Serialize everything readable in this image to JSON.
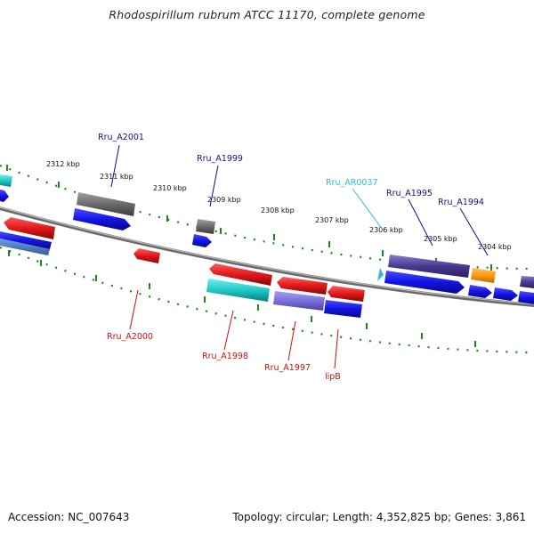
{
  "title": "Rhodospirillum rubrum ATCC 11170, complete genome",
  "footer": {
    "accession": "Accession: NC_007643",
    "summary": "Topology: circular; Length: 4,352,825 bp; Genes: 3,861"
  },
  "colors": {
    "backbone": "#8a8a8a",
    "ticks": "#1a8a1a",
    "forward_cds": "#1414e6",
    "reverse_cds": "#e01818",
    "pseudo_gene": "#6a6a6a",
    "other_feature": "#5a4aa8",
    "rna_feature": "#20c8c8",
    "ncrna": "#ff9a10",
    "label_forward": "#101090",
    "label_reverse": "#c81010",
    "label_rna": "#30b8e0"
  },
  "scale_labels": [
    "2312 kbp",
    "2311 kbp",
    "2310 kbp",
    "2309 kbp",
    "2308 kbp",
    "2307 kbp",
    "2306 kbp",
    "2305 kbp",
    "2304 kbp"
  ],
  "gene_labels": [
    {
      "name": "Rru_A2001",
      "strand": "forward"
    },
    {
      "name": "Rru_A1999",
      "strand": "forward"
    },
    {
      "name": "Rru_AR0037",
      "strand": "rna"
    },
    {
      "name": "Rru_A1995",
      "strand": "forward"
    },
    {
      "name": "Rru_A1994",
      "strand": "forward"
    },
    {
      "name": "Rru_A2000",
      "strand": "reverse"
    },
    {
      "name": "Rru_A1998",
      "strand": "reverse"
    },
    {
      "name": "Rru_A1997",
      "strand": "reverse"
    },
    {
      "name": "lipB",
      "strand": "reverse"
    }
  ]
}
